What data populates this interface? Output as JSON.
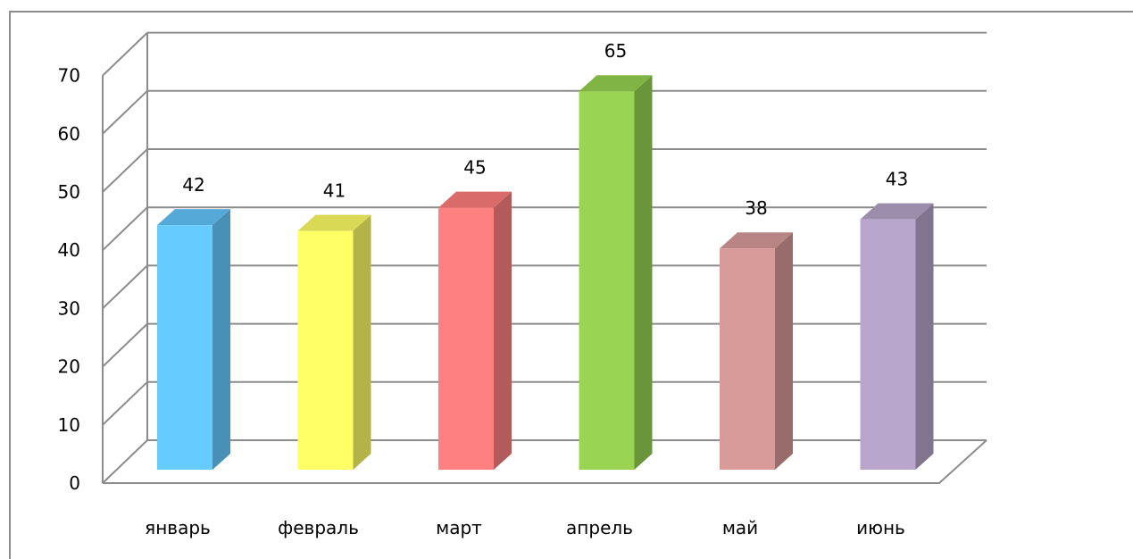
{
  "chart_data": {
    "type": "bar",
    "style": "3d-column",
    "categories": [
      "январь",
      "февраль",
      "март",
      "апрель",
      "май",
      "июнь"
    ],
    "values": [
      42,
      41,
      45,
      65,
      38,
      43
    ],
    "value_labels": [
      "42",
      "41",
      "45",
      "65",
      "38",
      "43"
    ],
    "y_ticks": [
      "0",
      "10",
      "20",
      "30",
      "40",
      "50",
      "60",
      "70"
    ],
    "ylim": [
      0,
      70
    ],
    "title": "",
    "xlabel": "",
    "ylabel": "",
    "grid": true,
    "legend": "none",
    "colors": [
      {
        "front": "#66ccff",
        "side": "#4a8fb5",
        "top": "#55a9d6"
      },
      {
        "front": "#ffff66",
        "side": "#b3b34a",
        "top": "#d9d955"
      },
      {
        "front": "#ff8080",
        "side": "#b35a5a",
        "top": "#d96b6b"
      },
      {
        "front": "#99d552",
        "side": "#6b953a",
        "top": "#80b545"
      },
      {
        "front": "#d99a9a",
        "side": "#996b6b",
        "top": "#b88484"
      },
      {
        "front": "#b8a6cc",
        "side": "#81748f",
        "top": "#9c8dad"
      }
    ]
  }
}
